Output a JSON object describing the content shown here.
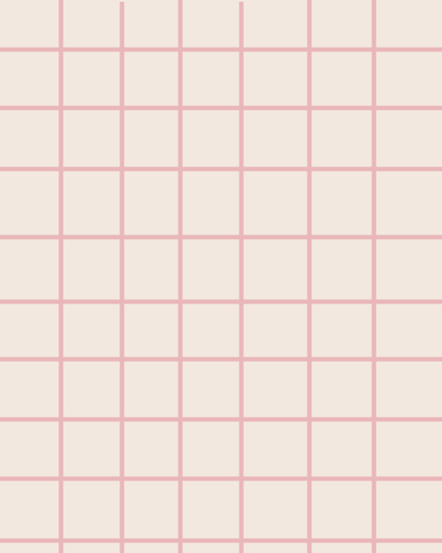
{
  "pattern": {
    "background_color": "#F3E8E0",
    "line_color": "#E9B7B9"
  }
}
